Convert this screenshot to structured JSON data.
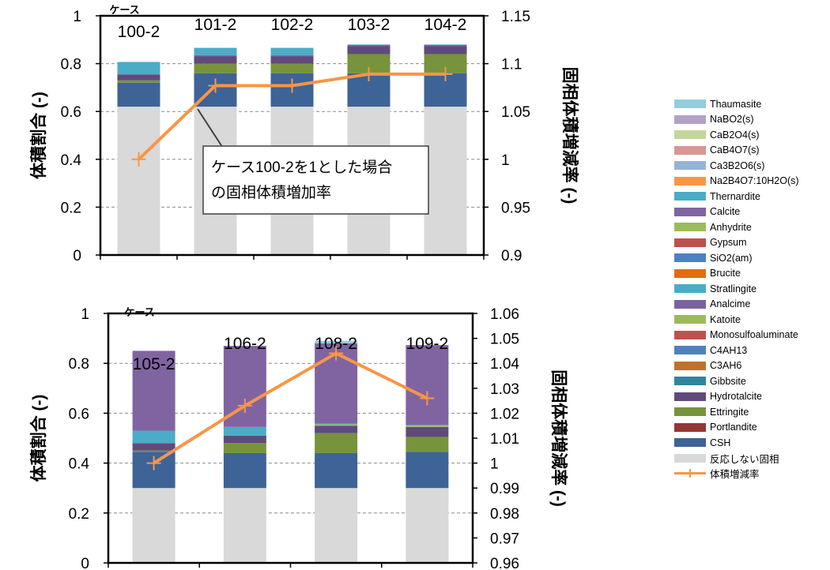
{
  "components": [
    {
      "name": "反応しない固相",
      "color": "#d9d9d9"
    },
    {
      "name": "CSH",
      "color": "#3e6396"
    },
    {
      "name": "Portlandite",
      "color": "#953735"
    },
    {
      "name": "Ettringite",
      "color": "#77933c"
    },
    {
      "name": "Hydrotalcite",
      "color": "#604a7b"
    },
    {
      "name": "Gibbsite",
      "color": "#31859c"
    },
    {
      "name": "C3AH6",
      "color": "#c0712b"
    },
    {
      "name": "C4AH13",
      "color": "#4f81bd"
    },
    {
      "name": "Monosulfoaluminate",
      "color": "#c0504d"
    },
    {
      "name": "Katoite",
      "color": "#9bbb59"
    },
    {
      "name": "Analcime",
      "color": "#7a63a0"
    },
    {
      "name": "Stratlingite",
      "color": "#4aacc6"
    },
    {
      "name": "Brucite",
      "color": "#e46c0a"
    },
    {
      "name": "SiO2(am)",
      "color": "#4f81bd"
    },
    {
      "name": "Gypsum",
      "color": "#c0504d"
    },
    {
      "name": "Anhydrite",
      "color": "#9bbb59"
    },
    {
      "name": "Calcite",
      "color": "#8064a2"
    },
    {
      "name": "Thernardite",
      "color": "#4bacc6"
    },
    {
      "name": "Na2B4O7:10H2O(s)",
      "color": "#f79646"
    },
    {
      "name": "Ca3B2O6(s)",
      "color": "#95b3d7"
    },
    {
      "name": "CaB4O7(s)",
      "color": "#d99694"
    },
    {
      "name": "CaB2O4(s)",
      "color": "#c3d69b"
    },
    {
      "name": "NaBO2(s)",
      "color": "#b3a2c7"
    },
    {
      "name": "Thaumasite",
      "color": "#93cddd"
    }
  ],
  "legend": {
    "order": [
      23,
      22,
      21,
      20,
      19,
      18,
      17,
      16,
      15,
      14,
      13,
      12,
      11,
      10,
      9,
      8,
      7,
      6,
      5,
      4,
      3,
      2,
      1,
      0
    ],
    "line_label": "体積増減率",
    "line_color": "#f79646"
  },
  "chart_data": [
    {
      "type": "bar",
      "stacked": true,
      "categories": [
        "100-2",
        "101-2",
        "102-2",
        "103-2",
        "104-2"
      ],
      "category_prefix": "ケース",
      "ylabel": "体積割合 (-)",
      "y2label": "固相体積増減率 (-)",
      "ylim": [
        0,
        1
      ],
      "yticks": [
        "0",
        "0.2",
        "0.4",
        "0.6",
        "0.8",
        "1"
      ],
      "y2lim": [
        0.9,
        1.15
      ],
      "y2ticks": [
        "0.9",
        "0.95",
        "1",
        "1.05",
        "1.1",
        "1.15"
      ],
      "grid": true,
      "stacks": [
        [
          [
            0,
            0.62
          ],
          [
            1,
            0.1
          ],
          [
            3,
            0.01
          ],
          [
            4,
            0.025
          ],
          [
            11,
            0.052
          ]
        ],
        [
          [
            0,
            0.62
          ],
          [
            1,
            0.14
          ],
          [
            3,
            0.04
          ],
          [
            4,
            0.03
          ],
          [
            16,
            0.006
          ],
          [
            11,
            0.03
          ]
        ],
        [
          [
            0,
            0.62
          ],
          [
            1,
            0.14
          ],
          [
            3,
            0.04
          ],
          [
            4,
            0.03
          ],
          [
            16,
            0.006
          ],
          [
            11,
            0.03
          ]
        ],
        [
          [
            0,
            0.62
          ],
          [
            1,
            0.14
          ],
          [
            3,
            0.08
          ],
          [
            4,
            0.033
          ],
          [
            16,
            0.005
          ],
          [
            11,
            0.002
          ]
        ],
        [
          [
            0,
            0.62
          ],
          [
            1,
            0.14
          ],
          [
            3,
            0.08
          ],
          [
            4,
            0.033
          ],
          [
            16,
            0.005
          ],
          [
            11,
            0.002
          ]
        ]
      ],
      "line": {
        "name": "体積増減率",
        "values": [
          1.0,
          1.077,
          1.077,
          1.089,
          1.089
        ]
      },
      "annotation": {
        "lines": [
          "ケース100-2を1とした場合",
          "の固相体積増加率"
        ]
      }
    },
    {
      "type": "bar",
      "stacked": true,
      "categories": [
        "105-2",
        "106-2",
        "108-2",
        "109-2"
      ],
      "category_prefix": "ケース",
      "ylabel": "体積割合 (-)",
      "y2label": "固相体積増減率 (-)",
      "ylim": [
        0,
        1
      ],
      "yticks": [
        "0",
        "0.2",
        "0.4",
        "0.6",
        "0.8",
        "1"
      ],
      "y2lim": [
        0.96,
        1.06
      ],
      "y2ticks": [
        "0.96",
        "0.97",
        "0.98",
        "0.99",
        "1",
        "1.01",
        "1.02",
        "1.03",
        "1.04",
        "1.05",
        "1.06"
      ],
      "grid": true,
      "stacks": [
        [
          [
            0,
            0.3
          ],
          [
            1,
            0.145
          ],
          [
            3,
            0.005
          ],
          [
            4,
            0.03
          ],
          [
            11,
            0.05
          ],
          [
            16,
            0.32
          ]
        ],
        [
          [
            0,
            0.3
          ],
          [
            1,
            0.14
          ],
          [
            3,
            0.04
          ],
          [
            4,
            0.03
          ],
          [
            11,
            0.035
          ],
          [
            16,
            0.325
          ]
        ],
        [
          [
            0,
            0.3
          ],
          [
            1,
            0.14
          ],
          [
            3,
            0.08
          ],
          [
            4,
            0.03
          ],
          [
            9,
            0.005
          ],
          [
            11,
            0.003
          ],
          [
            16,
            0.322
          ],
          [
            23,
            0.01
          ]
        ],
        [
          [
            0,
            0.3
          ],
          [
            1,
            0.145
          ],
          [
            3,
            0.06
          ],
          [
            4,
            0.04
          ],
          [
            9,
            0.005
          ],
          [
            11,
            0.003
          ],
          [
            16,
            0.32
          ]
        ]
      ],
      "line": {
        "name": "体積増減率",
        "values": [
          1.0,
          1.023,
          1.044,
          1.026
        ]
      }
    }
  ]
}
